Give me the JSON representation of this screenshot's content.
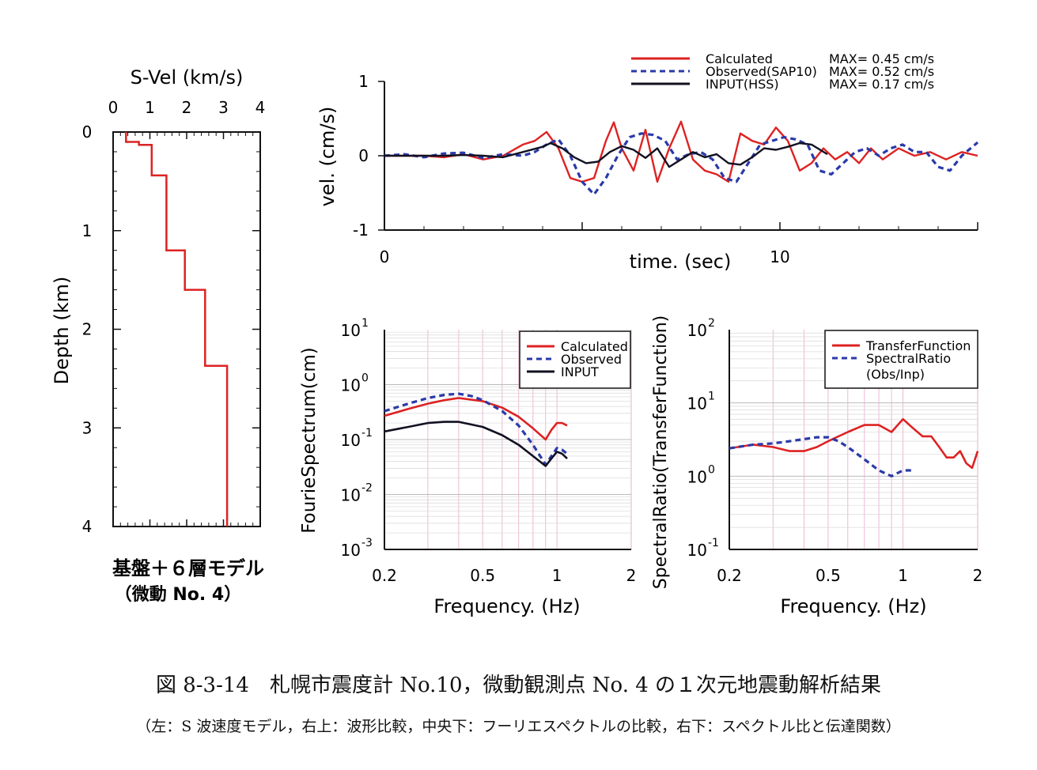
{
  "caption": {
    "line1": "図 8-3-14　札幌市震度計 No.10，微動観測点 No. 4 の１次元地震動解析結果",
    "line2": "（左：S 波速度モデル，右上：波形比較，中央下：フーリエスペクトルの比較，右下：スペクトル比と伝達関数）"
  },
  "chart_data": [
    {
      "id": "velocity-profile",
      "type": "line",
      "title": "S-Vel (km/s)",
      "xlabel": "S-Vel (km/s)",
      "ylabel": "Depth (km)",
      "xlim": [
        0,
        4
      ],
      "ylim": [
        4,
        0
      ],
      "x_ticks": [
        "0",
        "1",
        "2",
        "3",
        "4"
      ],
      "y_ticks": [
        "0",
        "1",
        "2",
        "3",
        "4"
      ],
      "model_label_1": "基盤＋６層モデル",
      "model_label_2": "（微動 No. 4）",
      "color": "#dd2222",
      "profile": [
        [
          0.35,
          0
        ],
        [
          0.35,
          0.1
        ],
        [
          0.7,
          0.1
        ],
        [
          0.7,
          0.13
        ],
        [
          1.05,
          0.13
        ],
        [
          1.05,
          0.44
        ],
        [
          1.45,
          0.44
        ],
        [
          1.45,
          1.2
        ],
        [
          1.95,
          1.2
        ],
        [
          1.95,
          1.6
        ],
        [
          2.5,
          1.6
        ],
        [
          2.5,
          2.37
        ],
        [
          3.1,
          2.37
        ],
        [
          3.1,
          4.0
        ]
      ]
    },
    {
      "id": "waveform",
      "type": "line",
      "xlabel": "time. (sec)",
      "ylabel": "vel. (cm/s)",
      "xlim": [
        0,
        15
      ],
      "ylim": [
        -1,
        1
      ],
      "x_ticks": [
        "0",
        "10"
      ],
      "y_ticks": [
        "1",
        "0",
        "-1"
      ],
      "legend_position": "top-right",
      "series": [
        {
          "name": "Calculated",
          "max_label": "MAX= 0.45 cm/s",
          "color": "#dd2222",
          "style": "solid",
          "x": [
            0,
            0.5,
            1,
            1.5,
            2,
            2.5,
            3,
            3.5,
            3.8,
            4.1,
            4.4,
            4.7,
            5,
            5.3,
            5.6,
            5.8,
            6,
            6.3,
            6.6,
            6.9,
            7.2,
            7.5,
            7.8,
            8.1,
            8.4,
            8.7,
            9,
            9.3,
            9.6,
            9.9,
            10.2,
            10.5,
            10.8,
            11.1,
            11.4,
            11.7,
            12,
            12.3,
            12.6,
            13,
            13.4,
            13.8,
            14.2,
            14.6,
            15
          ],
          "y": [
            0,
            0,
            0,
            -0.02,
            0.02,
            -0.05,
            0,
            0.15,
            0.2,
            0.32,
            0.1,
            -0.3,
            -0.35,
            -0.3,
            0.2,
            0.45,
            0.1,
            -0.2,
            0.35,
            -0.35,
            0.1,
            0.46,
            -0.05,
            -0.2,
            -0.25,
            -0.35,
            0.3,
            0.2,
            0.15,
            0.38,
            0.2,
            -0.2,
            -0.1,
            0.1,
            -0.05,
            0.05,
            -0.1,
            0.1,
            -0.05,
            0.1,
            0,
            0.05,
            -0.05,
            0.05,
            0
          ]
        },
        {
          "name": "Observed(SAP10)",
          "max_label": "MAX= 0.52 cm/s",
          "color": "#2a3aa8",
          "style": "dashed",
          "x": [
            0,
            0.5,
            1,
            1.5,
            2,
            2.5,
            3,
            3.5,
            3.8,
            4.1,
            4.4,
            4.7,
            5,
            5.3,
            5.6,
            5.9,
            6.2,
            6.5,
            6.8,
            7.1,
            7.4,
            7.7,
            8,
            8.3,
            8.6,
            8.9,
            9.2,
            9.5,
            9.8,
            10.1,
            10.4,
            10.7,
            11,
            11.3,
            11.6,
            11.9,
            12.2,
            12.5,
            12.8,
            13.1,
            13.4,
            13.7,
            14,
            14.3,
            14.6,
            15
          ],
          "y": [
            0,
            0.02,
            -0.02,
            0.03,
            0.04,
            -0.03,
            0.02,
            0,
            0.05,
            0.15,
            0.22,
            0,
            -0.35,
            -0.52,
            -0.3,
            0,
            0.25,
            0.3,
            0.28,
            0.2,
            -0.05,
            0.02,
            0.05,
            -0.05,
            -0.3,
            -0.35,
            -0.1,
            0.15,
            0.2,
            0.25,
            0.22,
            0.15,
            -0.2,
            -0.25,
            -0.1,
            0.05,
            0.1,
            0,
            0.1,
            0.15,
            0.05,
            0.05,
            -0.15,
            -0.2,
            0,
            0.18
          ]
        },
        {
          "name": "INPUT(HSS)",
          "max_label": "MAX= 0.17 cm/s",
          "color": "#111122",
          "style": "solid",
          "x": [
            0,
            0.5,
            1,
            1.5,
            2,
            2.5,
            3,
            3.5,
            4,
            4.2,
            4.5,
            4.8,
            5.1,
            5.4,
            5.7,
            6,
            6.3,
            6.6,
            6.9,
            7.2,
            7.5,
            7.8,
            8.1,
            8.4,
            8.7,
            9,
            9.3,
            9.6,
            9.9,
            10.2,
            10.5,
            10.8,
            11.2
          ],
          "y": [
            0,
            0,
            0,
            0,
            0.01,
            0,
            -0.02,
            0.05,
            0.12,
            0.17,
            0.1,
            -0.02,
            -0.1,
            -0.08,
            0.05,
            0.13,
            0.08,
            -0.03,
            0.1,
            -0.15,
            -0.05,
            0.05,
            -0.02,
            0.02,
            -0.1,
            -0.12,
            -0.02,
            0.1,
            0.08,
            0.12,
            0.17,
            0.15,
            0.02
          ]
        }
      ]
    },
    {
      "id": "fourier-spectrum",
      "type": "line",
      "xlabel": "Frequency. (Hz)",
      "ylabel": "FourieSpectrum(cm)",
      "log_x": true,
      "log_y": true,
      "xlim": [
        0.2,
        2
      ],
      "ylim": [
        0.001,
        10
      ],
      "x_ticks": [
        "0.2",
        "0.5",
        "1",
        "2"
      ],
      "y_tick_labels": [
        {
          "base": "10",
          "exp": "1"
        },
        {
          "base": "10",
          "exp": "0"
        },
        {
          "base": "10",
          "exp": "-1"
        },
        {
          "base": "10",
          "exp": "-2"
        },
        {
          "base": "10",
          "exp": "-3"
        }
      ],
      "legend_position": "top-right",
      "series": [
        {
          "name": "Calculated",
          "color": "#dd2222",
          "style": "solid",
          "x": [
            0.2,
            0.25,
            0.3,
            0.35,
            0.4,
            0.5,
            0.6,
            0.7,
            0.8,
            0.9,
            0.95,
            1.0,
            1.05,
            1.1
          ],
          "y": [
            0.27,
            0.36,
            0.45,
            0.52,
            0.57,
            0.5,
            0.38,
            0.26,
            0.16,
            0.1,
            0.15,
            0.2,
            0.2,
            0.18
          ]
        },
        {
          "name": "Observed",
          "color": "#2a3aa8",
          "style": "dashed",
          "x": [
            0.2,
            0.25,
            0.3,
            0.35,
            0.4,
            0.45,
            0.5,
            0.6,
            0.7,
            0.8,
            0.9,
            0.95,
            1.0,
            1.05,
            1.1
          ],
          "y": [
            0.33,
            0.45,
            0.57,
            0.65,
            0.68,
            0.62,
            0.52,
            0.33,
            0.18,
            0.08,
            0.035,
            0.05,
            0.07,
            0.065,
            0.055
          ]
        },
        {
          "name": "INPUT",
          "color": "#111122",
          "style": "solid",
          "x": [
            0.2,
            0.25,
            0.3,
            0.35,
            0.4,
            0.5,
            0.6,
            0.7,
            0.8,
            0.9,
            0.95,
            1.0,
            1.05,
            1.1
          ],
          "y": [
            0.14,
            0.17,
            0.2,
            0.21,
            0.21,
            0.17,
            0.12,
            0.08,
            0.05,
            0.033,
            0.045,
            0.06,
            0.055,
            0.045
          ]
        }
      ]
    },
    {
      "id": "spectral-ratio",
      "type": "line",
      "xlabel": "Frequency. (Hz)",
      "ylabel": "SpectralRatio(TransferFunction)",
      "log_x": true,
      "log_y": true,
      "xlim": [
        0.2,
        2
      ],
      "ylim": [
        0.1,
        100
      ],
      "x_ticks": [
        "0.2",
        "0.5",
        "1",
        "2"
      ],
      "y_tick_labels": [
        {
          "base": "10",
          "exp": "2"
        },
        {
          "base": "10",
          "exp": "1"
        },
        {
          "base": "10",
          "exp": "0"
        },
        {
          "base": "10",
          "exp": "-1"
        }
      ],
      "legend_position": "top-right",
      "series": [
        {
          "name": "TransferFunction",
          "color": "#dd2222",
          "style": "solid",
          "x": [
            0.2,
            0.25,
            0.3,
            0.35,
            0.4,
            0.45,
            0.5,
            0.6,
            0.7,
            0.8,
            0.9,
            1.0,
            1.1,
            1.2,
            1.3,
            1.4,
            1.5,
            1.6,
            1.7,
            1.8,
            1.9,
            2.0
          ],
          "y": [
            2.4,
            2.7,
            2.5,
            2.2,
            2.2,
            2.5,
            3.0,
            4.0,
            5.0,
            5.0,
            4.0,
            6.0,
            4.5,
            3.5,
            3.5,
            2.5,
            1.8,
            1.8,
            2.2,
            1.5,
            1.3,
            2.2
          ]
        },
        {
          "name": "SpectralRatio",
          "name_line2": "(Obs/Inp)",
          "color": "#2a3aa8",
          "style": "dashed",
          "x": [
            0.2,
            0.25,
            0.3,
            0.35,
            0.4,
            0.45,
            0.5,
            0.55,
            0.6,
            0.7,
            0.8,
            0.9,
            0.95,
            1.0,
            1.05,
            1.1
          ],
          "y": [
            2.4,
            2.7,
            2.8,
            3.0,
            3.2,
            3.4,
            3.4,
            3.0,
            2.5,
            1.7,
            1.2,
            1.0,
            1.1,
            1.2,
            1.2,
            1.2
          ]
        }
      ]
    }
  ]
}
